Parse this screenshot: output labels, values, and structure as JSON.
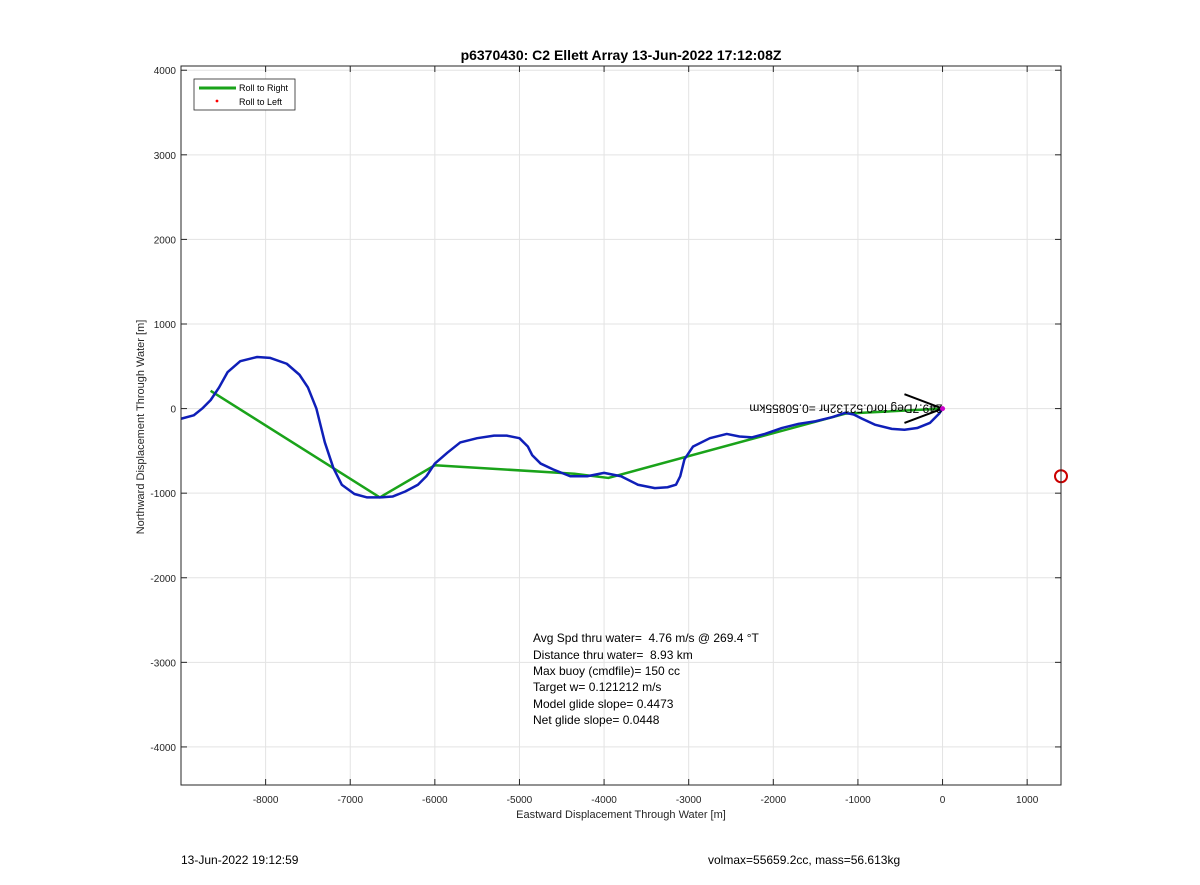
{
  "chart_data": {
    "type": "line",
    "title": "p6370430: C2 Ellett Array 13-Jun-2022 17:12:08Z",
    "xlabel": "Eastward Displacement Through Water [m]",
    "ylabel": "Northward Displacement Through Water [m]",
    "xlim": [
      -9000,
      1400
    ],
    "ylim": [
      -4450,
      4050
    ],
    "xticks": [
      -8000,
      -7000,
      -6000,
      -5000,
      -4000,
      -3000,
      -2000,
      -1000,
      0,
      1000
    ],
    "yticks": [
      -4000,
      -3000,
      -2000,
      -1000,
      0,
      1000,
      2000,
      3000,
      4000
    ],
    "grid": true,
    "legend_position": "top-left",
    "series": [
      {
        "name": "Roll to Right",
        "color": "#1aa31a",
        "style": "line",
        "x": [
          0,
          -1150,
          -3950,
          -4350,
          -6000,
          -6650,
          -8650
        ],
        "y": [
          0,
          -60,
          -820,
          -770,
          -670,
          -1050,
          210
        ]
      },
      {
        "name": "Roll to Left",
        "color": "#ff0000",
        "style": "marker",
        "x": [],
        "y": []
      },
      {
        "name": "",
        "color": "#0f1fb8",
        "style": "line",
        "x": [
          0,
          -40,
          -150,
          -300,
          -450,
          -600,
          -800,
          -950,
          -1050,
          -1150,
          -1300,
          -1500,
          -1700,
          -1900,
          -2100,
          -2250,
          -2400,
          -2550,
          -2750,
          -2950,
          -3050,
          -3100,
          -3150,
          -3250,
          -3400,
          -3600,
          -3800,
          -4000,
          -4200,
          -4400,
          -4600,
          -4750,
          -4850,
          -4900,
          -5000,
          -5150,
          -5300,
          -5500,
          -5700,
          -5850,
          -6000,
          -6100,
          -6200,
          -6350,
          -6500,
          -6650,
          -6800,
          -6950,
          -7100,
          -7200,
          -7300,
          -7350,
          -7400,
          -7500,
          -7600,
          -7750,
          -7950,
          -8100,
          -8300,
          -8450,
          -8550,
          -8650,
          -8750,
          -8850,
          -9000
        ],
        "y": [
          0,
          -60,
          -170,
          -230,
          -250,
          -240,
          -190,
          -120,
          -70,
          -50,
          -100,
          -150,
          -180,
          -230,
          -300,
          -340,
          -330,
          -300,
          -350,
          -450,
          -600,
          -800,
          -900,
          -930,
          -940,
          -900,
          -800,
          -760,
          -800,
          -800,
          -720,
          -650,
          -550,
          -450,
          -350,
          -320,
          -320,
          -350,
          -400,
          -520,
          -650,
          -800,
          -900,
          -980,
          -1040,
          -1050,
          -1050,
          -1010,
          -900,
          -700,
          -400,
          -200,
          0,
          250,
          400,
          530,
          600,
          610,
          560,
          430,
          250,
          100,
          0,
          -80,
          -120
        ]
      },
      {
        "name": "",
        "color": "#000000",
        "style": "arrow",
        "x": [
          -450,
          0,
          -450
        ],
        "y": [
          170,
          0,
          -170
        ]
      }
    ],
    "annotations": [
      {
        "text": "249.7Deg for0.52132hr =0.50855km",
        "x": 0,
        "y": 0,
        "rotation": 180
      }
    ],
    "outlier_marker": {
      "x": 1400,
      "y": -800,
      "color": "#cc0000"
    }
  },
  "stats": [
    "Avg Spd thru water=  4.76 m/s @ 269.4 °T",
    "Distance thru water=  8.93 km",
    "Max buoy (cmdfile)= 150 cc",
    "Target w= 0.121212 m/s",
    "Model glide slope= 0.4473",
    "Net glide slope= 0.0448"
  ],
  "footer": {
    "timestamp": "13-Jun-2022 19:12:59",
    "volmax_mass": "volmax=55659.2cc, mass=56.613kg"
  }
}
